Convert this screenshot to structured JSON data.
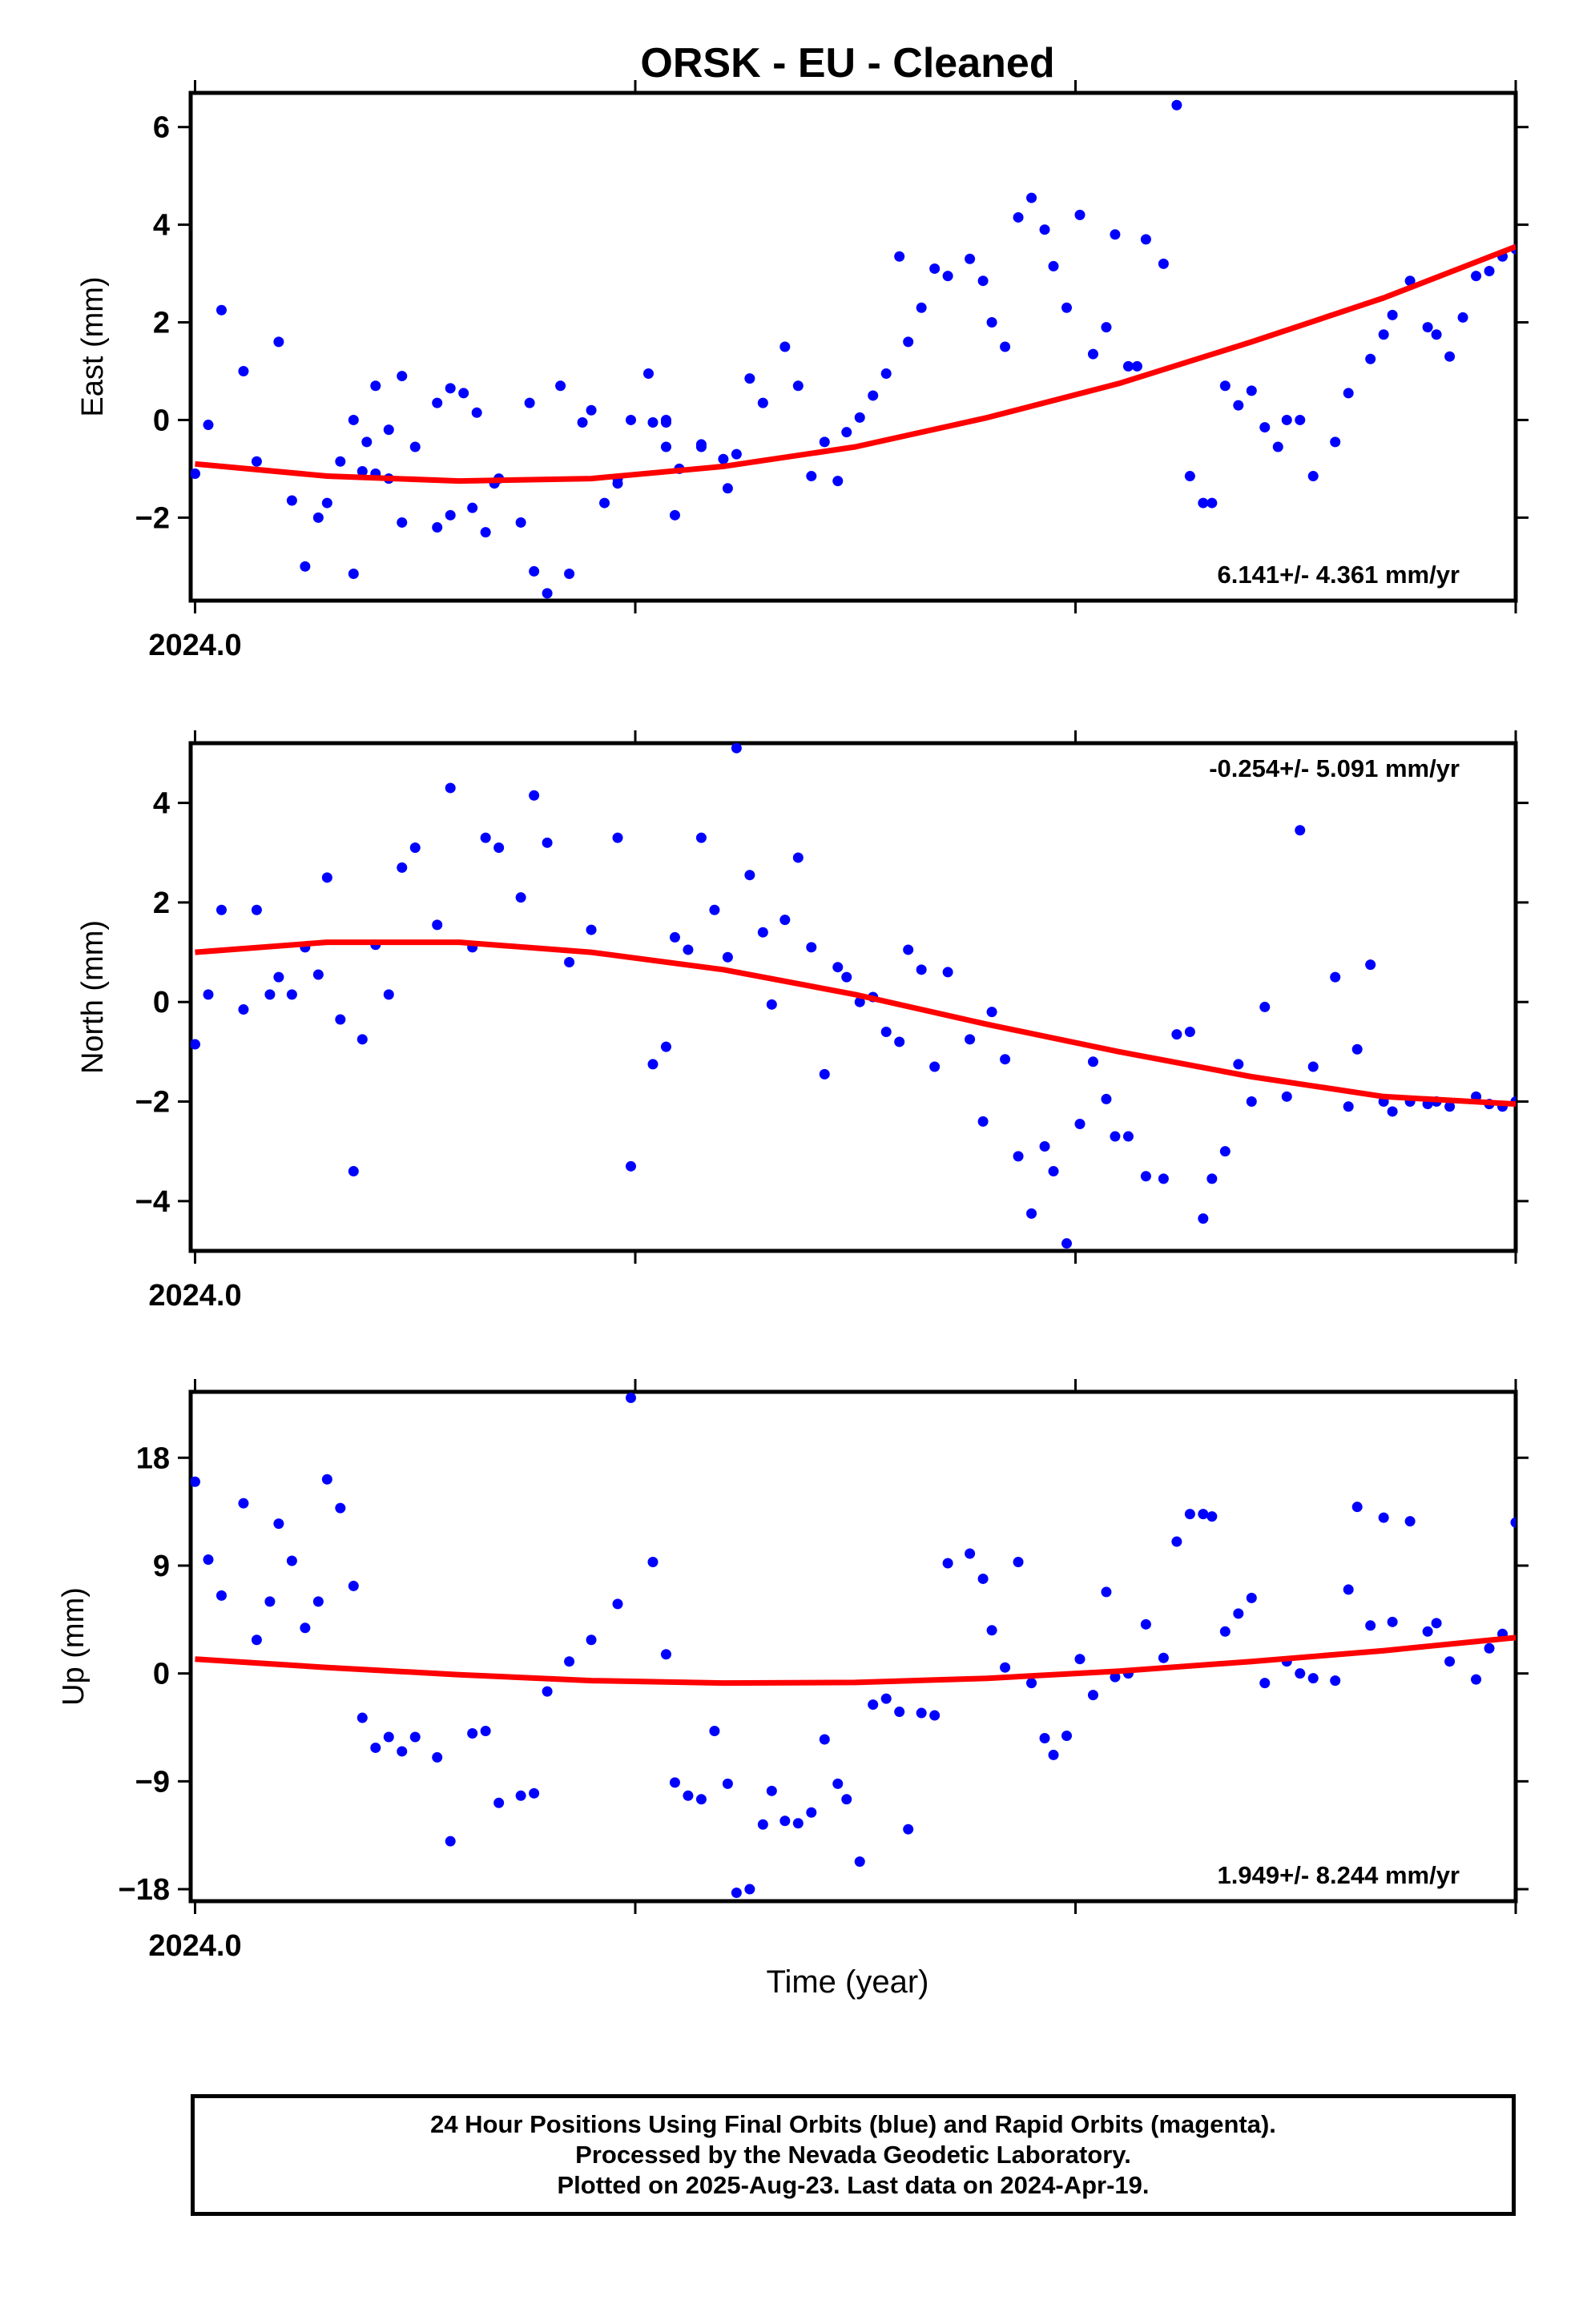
{
  "title": "ORSK  - EU - Cleaned",
  "xlabel": "Time (year)",
  "footer": {
    "line1": "24 Hour Positions Using Final Orbits (blue) and Rapid Orbits (magenta).",
    "line2": "Processed by the Nevada Geodetic Laboratory.",
    "line3": "Plotted on 2025-Aug-23. Last data on 2024-Apr-19."
  },
  "colors": {
    "points": "#0000ff",
    "fit": "#ff0000",
    "axes": "#000000"
  },
  "chart_data": [
    {
      "type": "scatter",
      "name": "east",
      "ylabel": "East (mm)",
      "xlim": [
        2023.999,
        2024.3
      ],
      "ylim": [
        -3.7,
        6.7
      ],
      "yticks": [
        -2,
        0,
        2,
        4,
        6
      ],
      "xtick_label": "2024.0",
      "rate_label": "6.141+/- 4.361 mm/yr",
      "rate_position": "bottom-right",
      "x": [
        2024.0,
        2024.003,
        2024.006,
        2024.011,
        2024.014,
        2024.019,
        2024.022,
        2024.025,
        2024.028,
        2024.03,
        2024.033,
        2024.036,
        2024.038,
        2024.041,
        2024.044,
        2024.047,
        2024.05,
        2024.055,
        2024.058,
        2024.063,
        2024.066,
        2024.069,
        2024.074,
        2024.077,
        2024.08,
        2024.085,
        2024.09,
        2024.096,
        2024.099,
        2024.103,
        2024.107,
        2024.109,
        2024.11,
        2024.115,
        2024.121,
        2024.107,
        2024.104,
        2024.096,
        2024.093,
        2024.088,
        2024.083,
        2024.076,
        2024.068,
        2024.064,
        2024.061,
        2024.058,
        2024.055,
        2024.047,
        2024.044,
        2024.041,
        2024.039,
        2024.036,
        2024.107,
        2024.115,
        2024.12,
        2024.123,
        2024.126,
        2024.129,
        2024.134,
        2024.137,
        2024.14,
        2024.143,
        2024.146,
        2024.148,
        2024.151,
        2024.154,
        2024.157,
        2024.16,
        2024.162,
        2024.165,
        2024.168,
        2024.171,
        2024.176,
        2024.179,
        2024.181,
        2024.184,
        2024.187,
        2024.19,
        2024.193,
        2024.195,
        2024.198,
        2024.201,
        2024.204,
        2024.207,
        2024.209,
        2024.212,
        2024.214,
        2024.216,
        2024.22,
        2024.223,
        2024.226,
        2024.229,
        2024.231,
        2024.234,
        2024.237,
        2024.24,
        2024.243,
        2024.246,
        2024.248,
        2024.251,
        2024.254,
        2024.259,
        2024.262,
        2024.267,
        2024.27,
        2024.272,
        2024.276,
        2024.28,
        2024.282,
        2024.285,
        2024.288,
        2024.291,
        2024.294,
        2024.297,
        2024.3
      ],
      "y": [
        -1.1,
        -0.1,
        2.25,
        1.0,
        -0.85,
        1.6,
        -1.65,
        -3.0,
        -2.0,
        -1.7,
        -0.85,
        -3.15,
        -1.05,
        -1.1,
        -1.2,
        -2.1,
        -0.55,
        -2.2,
        -1.95,
        -1.8,
        -2.3,
        -1.2,
        -2.1,
        -3.1,
        -3.55,
        -3.15,
        0.2,
        -1.3,
        0.0,
        0.95,
        -0.55,
        -1.95,
        -1.0,
        -0.5,
        -1.4,
        0.0,
        -0.05,
        -1.2,
        -1.7,
        -0.05,
        0.7,
        0.35,
        -1.3,
        0.15,
        0.55,
        0.65,
        0.35,
        0.9,
        -0.2,
        0.7,
        -0.45,
        0.0,
        -0.05,
        -0.55,
        -0.8,
        -0.7,
        0.85,
        0.35,
        1.5,
        0.7,
        -1.15,
        -0.45,
        -1.25,
        -0.25,
        0.05,
        0.5,
        0.95,
        3.35,
        1.6,
        2.3,
        3.1,
        2.95,
        3.3,
        2.85,
        2.0,
        1.5,
        4.15,
        4.55,
        3.9,
        3.15,
        2.3,
        4.2,
        1.35,
        1.9,
        3.8,
        1.1,
        1.1,
        3.7,
        3.2,
        6.45,
        -1.15,
        -1.7,
        -1.7,
        0.7,
        0.3,
        0.6,
        -0.15,
        -0.55,
        0.0,
        0.0,
        -1.15,
        -0.45,
        0.55,
        1.25,
        1.75,
        2.15,
        2.85,
        1.9,
        1.75,
        1.3,
        2.1,
        2.95,
        3.05,
        3.35,
        3.5
      ],
      "fit": {
        "x": [
          2024.0,
          2024.03,
          2024.06,
          2024.09,
          2024.12,
          2024.15,
          2024.18,
          2024.21,
          2024.24,
          2024.27,
          2024.3
        ],
        "y": [
          -0.9,
          -1.15,
          -1.25,
          -1.2,
          -0.95,
          -0.55,
          0.05,
          0.75,
          1.6,
          2.5,
          3.55
        ]
      }
    },
    {
      "type": "scatter",
      "name": "north",
      "ylabel": "North (mm)",
      "xlim": [
        2023.999,
        2024.3
      ],
      "ylim": [
        -5.0,
        5.2
      ],
      "yticks": [
        -4,
        -2,
        0,
        2,
        4
      ],
      "xtick_label": "2024.0",
      "rate_label": "-0.254+/- 5.091 mm/yr",
      "rate_position": "top-right",
      "x": [
        2024.0,
        2024.003,
        2024.006,
        2024.011,
        2024.014,
        2024.017,
        2024.019,
        2024.022,
        2024.025,
        2024.028,
        2024.03,
        2024.033,
        2024.036,
        2024.038,
        2024.041,
        2024.044,
        2024.047,
        2024.05,
        2024.055,
        2024.058,
        2024.063,
        2024.066,
        2024.069,
        2024.074,
        2024.077,
        2024.08,
        2024.085,
        2024.09,
        2024.096,
        2024.099,
        2024.104,
        2024.107,
        2024.109,
        2024.112,
        2024.115,
        2024.118,
        2024.121,
        2024.123,
        2024.126,
        2024.129,
        2024.131,
        2024.134,
        2024.137,
        2024.14,
        2024.143,
        2024.146,
        2024.148,
        2024.151,
        2024.154,
        2024.157,
        2024.16,
        2024.162,
        2024.165,
        2024.168,
        2024.171,
        2024.176,
        2024.179,
        2024.181,
        2024.184,
        2024.187,
        2024.19,
        2024.193,
        2024.195,
        2024.198,
        2024.201,
        2024.204,
        2024.207,
        2024.209,
        2024.212,
        2024.216,
        2024.22,
        2024.223,
        2024.226,
        2024.229,
        2024.231,
        2024.234,
        2024.237,
        2024.24,
        2024.243,
        2024.248,
        2024.251,
        2024.254,
        2024.259,
        2024.262,
        2024.264,
        2024.267,
        2024.27,
        2024.272,
        2024.276,
        2024.28,
        2024.282,
        2024.285,
        2024.291,
        2024.294,
        2024.297,
        2024.3
      ],
      "y": [
        -0.85,
        0.15,
        1.85,
        -0.15,
        1.85,
        0.15,
        0.5,
        0.15,
        1.1,
        0.55,
        2.5,
        -0.35,
        -3.4,
        -0.75,
        1.15,
        0.15,
        2.7,
        3.1,
        1.55,
        4.3,
        1.1,
        3.3,
        3.1,
        2.1,
        4.15,
        3.2,
        0.8,
        1.45,
        3.3,
        -3.3,
        -1.25,
        -0.9,
        1.3,
        1.05,
        3.3,
        1.85,
        0.9,
        5.1,
        2.55,
        1.4,
        -0.05,
        1.65,
        2.9,
        1.1,
        -1.45,
        0.7,
        0.5,
        0.0,
        0.1,
        -0.6,
        -0.8,
        1.05,
        0.65,
        -1.3,
        0.6,
        -0.75,
        -2.4,
        -0.2,
        -1.15,
        -3.1,
        -4.25,
        -2.9,
        -3.4,
        -4.85,
        -2.45,
        -1.2,
        -1.95,
        -2.7,
        -2.7,
        -3.5,
        -3.55,
        -0.65,
        -0.6,
        -4.35,
        -3.55,
        -3.0,
        -1.25,
        -2.0,
        -0.1,
        -1.9,
        3.45,
        -1.3,
        0.5,
        -2.1,
        -0.95,
        0.75,
        -2.0,
        -2.2,
        -2.0,
        -2.05,
        -2.0,
        -2.1,
        -1.9,
        -2.05,
        -2.1,
        -2.0
      ],
      "fit": {
        "x": [
          2024.0,
          2024.03,
          2024.06,
          2024.09,
          2024.12,
          2024.15,
          2024.18,
          2024.21,
          2024.24,
          2024.27,
          2024.3
        ],
        "y": [
          1.0,
          1.2,
          1.2,
          1.0,
          0.65,
          0.15,
          -0.45,
          -1.0,
          -1.5,
          -1.9,
          -2.05
        ]
      }
    },
    {
      "type": "scatter",
      "name": "up",
      "ylabel": "Up (mm)",
      "xlim": [
        2023.999,
        2024.3
      ],
      "ylim": [
        -19.0,
        23.5
      ],
      "yticks": [
        -18,
        -9,
        0,
        9,
        18
      ],
      "xtick_label": "2024.0",
      "rate_label": "1.949+/- 8.244 mm/yr",
      "rate_position": "bottom-right",
      "x": [
        2024.0,
        2024.003,
        2024.006,
        2024.011,
        2024.014,
        2024.017,
        2024.019,
        2024.022,
        2024.025,
        2024.028,
        2024.03,
        2024.033,
        2024.036,
        2024.038,
        2024.041,
        2024.044,
        2024.047,
        2024.05,
        2024.055,
        2024.058,
        2024.063,
        2024.066,
        2024.069,
        2024.074,
        2024.077,
        2024.08,
        2024.085,
        2024.09,
        2024.096,
        2024.099,
        2024.104,
        2024.107,
        2024.109,
        2024.112,
        2024.115,
        2024.118,
        2024.121,
        2024.123,
        2024.126,
        2024.129,
        2024.131,
        2024.134,
        2024.137,
        2024.14,
        2024.143,
        2024.146,
        2024.148,
        2024.151,
        2024.154,
        2024.157,
        2024.16,
        2024.162,
        2024.165,
        2024.168,
        2024.171,
        2024.176,
        2024.179,
        2024.181,
        2024.184,
        2024.187,
        2024.19,
        2024.193,
        2024.195,
        2024.198,
        2024.201,
        2024.204,
        2024.207,
        2024.209,
        2024.212,
        2024.216,
        2024.22,
        2024.223,
        2024.226,
        2024.229,
        2024.231,
        2024.234,
        2024.237,
        2024.24,
        2024.243,
        2024.248,
        2024.251,
        2024.254,
        2024.259,
        2024.262,
        2024.264,
        2024.267,
        2024.27,
        2024.272,
        2024.276,
        2024.28,
        2024.282,
        2024.285,
        2024.291,
        2024.294,
        2024.297,
        2024.3
      ],
      "y": [
        16.0,
        9.5,
        6.5,
        14.2,
        2.8,
        6.0,
        12.5,
        9.4,
        3.8,
        6.0,
        16.2,
        13.8,
        7.3,
        -3.7,
        -6.2,
        -5.3,
        -6.5,
        -5.3,
        -7.0,
        -14.0,
        -5.0,
        -4.8,
        -10.8,
        -10.2,
        -10.0,
        -1.5,
        1.0,
        2.8,
        5.8,
        23.0,
        9.3,
        1.6,
        -9.1,
        -10.2,
        -10.5,
        -4.8,
        -9.2,
        -18.3,
        -18.0,
        -12.6,
        -9.8,
        -12.3,
        -12.5,
        -11.6,
        -5.5,
        -9.2,
        -10.5,
        -15.7,
        -2.6,
        -2.1,
        -3.2,
        -13.0,
        -3.3,
        -3.5,
        9.2,
        10.0,
        7.9,
        3.6,
        0.5,
        9.3,
        -0.8,
        -5.4,
        -6.8,
        -5.2,
        1.2,
        -1.8,
        6.8,
        -0.3,
        0.0,
        4.1,
        1.3,
        11.0,
        13.3,
        13.3,
        13.1,
        3.5,
        5.0,
        6.3,
        -0.8,
        1.0,
        0.0,
        -0.4,
        -0.6,
        7.0,
        13.9,
        4.0,
        13.0,
        4.3,
        12.7,
        3.5,
        4.2,
        1.0,
        -0.5,
        2.1,
        3.3,
        12.6
      ],
      "fit": {
        "x": [
          2024.0,
          2024.03,
          2024.06,
          2024.09,
          2024.12,
          2024.15,
          2024.18,
          2024.21,
          2024.24,
          2024.27,
          2024.3
        ],
        "y": [
          1.2,
          0.5,
          -0.1,
          -0.6,
          -0.8,
          -0.75,
          -0.4,
          0.2,
          1.0,
          1.9,
          3.0
        ]
      }
    }
  ]
}
